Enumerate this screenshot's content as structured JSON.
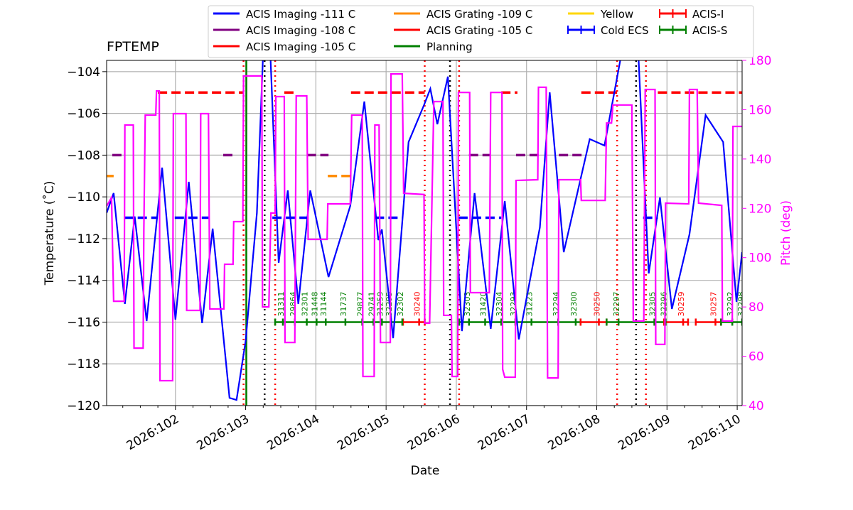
{
  "chart_data": {
    "type": "line",
    "title": "FPTEMP",
    "xlabel": "Date",
    "ylabel": "Temperature ($^\\circ$C)",
    "ylabel_display": "Temperature (˚C)",
    "y2label": "Pitch (deg)",
    "xlim": [
      101.02,
      110.07
    ],
    "ylim": [
      -120,
      -103.46
    ],
    "y2lim": [
      40,
      180
    ],
    "grid": true,
    "legend_position": "top",
    "x_ticks": [
      102,
      103,
      104,
      105,
      106,
      107,
      108,
      109,
      110
    ],
    "x_tick_labels": [
      "2026:102",
      "2026:103",
      "2026:104",
      "2026:105",
      "2026:106",
      "2026:107",
      "2026:108",
      "2026:109",
      "2026:110"
    ],
    "y_ticks": [
      -120,
      -118,
      -116,
      -114,
      -112,
      -110,
      -108,
      -106,
      -104
    ],
    "y_tick_labels": [
      "−120",
      "−118",
      "−116",
      "−114",
      "−112",
      "−110",
      "−108",
      "−106",
      "−104"
    ],
    "y2_ticks": [
      40,
      60,
      80,
      100,
      120,
      140,
      160,
      180
    ],
    "y2_tick_labels": [
      "40",
      "60",
      "80",
      "100",
      "120",
      "140",
      "160",
      "180"
    ],
    "legend": [
      {
        "label": "ACIS Imaging -111 C",
        "color": "#0000ff",
        "kind": "line"
      },
      {
        "label": "ACIS Imaging -108 C",
        "color": "#800080",
        "kind": "line"
      },
      {
        "label": "ACIS Imaging -105 C",
        "color": "#ff0000",
        "kind": "line"
      },
      {
        "label": "ACIS Grating -109 C",
        "color": "#ff8c00",
        "kind": "line"
      },
      {
        "label": "ACIS Grating -105 C",
        "color": "#ff0000",
        "kind": "line"
      },
      {
        "label": "Planning",
        "color": "#008000",
        "kind": "line"
      },
      {
        "label": "Yellow",
        "color": "#ffd700",
        "kind": "line"
      },
      {
        "label": "Cold ECS",
        "color": "#0000ff",
        "kind": "errorbar"
      },
      {
        "label": "ACIS-I",
        "color": "#ff0000",
        "kind": "errorbar"
      },
      {
        "label": "ACIS-S",
        "color": "#008000",
        "kind": "errorbar"
      }
    ],
    "series": [
      {
        "name": "FPTEMP",
        "axis": "left",
        "color": "#0000ff",
        "x": [
          101.02,
          101.12,
          101.28,
          101.42,
          101.59,
          101.81,
          102.0,
          102.19,
          102.38,
          102.53,
          102.77,
          102.87,
          103.0,
          103.16,
          103.25,
          103.35,
          103.47,
          103.6,
          103.75,
          103.92,
          104.18,
          104.49,
          104.69,
          104.89,
          104.94,
          105.1,
          105.32,
          105.54,
          105.63,
          105.73,
          105.88,
          106.08,
          106.26,
          106.49,
          106.69,
          106.89,
          107.19,
          107.33,
          107.53,
          107.9,
          108.11,
          108.36,
          108.59,
          108.74,
          108.9,
          109.07,
          109.32,
          109.55,
          109.8,
          109.99,
          110.07
        ],
        "y": [
          -110.77,
          -109.82,
          -115.13,
          -110.94,
          -115.95,
          -108.6,
          -115.88,
          -109.28,
          -116.05,
          -111.52,
          -119.63,
          -119.73,
          -116.9,
          -110.77,
          -103,
          -103,
          -113.16,
          -109.69,
          -115.13,
          -109.69,
          -113.84,
          -110.43,
          -105.43,
          -112.07,
          -111.56,
          -116.77,
          -107.37,
          -105.6,
          -104.82,
          -106.52,
          -104.24,
          -116.43,
          -109.82,
          -116.32,
          -110.2,
          -116.83,
          -111.46,
          -104.99,
          -112.65,
          -107.23,
          -107.54,
          -103,
          -103,
          -113.67,
          -110.03,
          -115.37,
          -111.8,
          -106.08,
          -107.37,
          -115.03,
          -112.65
        ]
      },
      {
        "name": "Pitch",
        "axis": "right",
        "color": "#ff00ff",
        "x": [
          101.02,
          101.09,
          101.12,
          101.27,
          101.28,
          101.4,
          101.41,
          101.54,
          101.55,
          101.57,
          101.72,
          101.73,
          101.77,
          101.78,
          101.96,
          101.97,
          102.15,
          102.16,
          102.35,
          102.36,
          102.47,
          102.49,
          102.69,
          102.7,
          102.82,
          102.83,
          102.96,
          102.97,
          103.23,
          103.24,
          103.33,
          103.36,
          103.42,
          103.43,
          103.55,
          103.56,
          103.7,
          103.72,
          103.87,
          103.89,
          104.16,
          104.17,
          104.49,
          104.51,
          104.66,
          104.67,
          104.83,
          104.84,
          104.9,
          104.92,
          105.06,
          105.07,
          105.23,
          105.25,
          105.54,
          105.55,
          105.62,
          105.68,
          105.81,
          105.82,
          105.93,
          105.94,
          106.02,
          106.03,
          106.19,
          106.2,
          106.47,
          106.49,
          106.65,
          106.66,
          106.69,
          106.84,
          106.85,
          107.16,
          107.17,
          107.28,
          107.3,
          107.45,
          107.46,
          107.77,
          107.78,
          108.12,
          108.14,
          108.21,
          108.23,
          108.5,
          108.52,
          108.67,
          108.69,
          108.83,
          108.84,
          108.97,
          108.98,
          109.31,
          109.32,
          109.43,
          109.45,
          109.78,
          109.79,
          109.93,
          109.94,
          110.07
        ],
        "y": [
          120.9,
          124.4,
          82.3,
          82.3,
          153.8,
          153.8,
          63.3,
          63.3,
          110.9,
          157.8,
          157.8,
          167.6,
          167.6,
          50.1,
          50.1,
          158.4,
          158.4,
          78.6,
          78.6,
          158.4,
          158.4,
          79.2,
          79.2,
          97.3,
          97.3,
          114.6,
          114.6,
          173.7,
          173.7,
          80,
          80,
          118.1,
          118.1,
          165.3,
          165.3,
          65.6,
          65.6,
          165.6,
          165.6,
          107.4,
          107.4,
          121.8,
          121.8,
          157.8,
          157.8,
          51.8,
          51.8,
          153.8,
          153.8,
          65.6,
          65.6,
          174.5,
          174.5,
          126.1,
          125.6,
          73.4,
          73.4,
          163.3,
          163.3,
          76.6,
          76.6,
          51.8,
          51.8,
          167,
          167,
          85.8,
          85.8,
          167,
          167,
          54.7,
          51.5,
          51.5,
          131.3,
          131.6,
          169.1,
          169.1,
          51.2,
          51.2,
          131.6,
          131.6,
          123.2,
          123.2,
          154.6,
          154.6,
          161.9,
          161.9,
          74.3,
          74.3,
          168.2,
          168.2,
          64.8,
          64.8,
          122.1,
          121.8,
          168.2,
          168.2,
          122.1,
          121.2,
          74.3,
          74.3,
          153.2,
          153.2
        ]
      }
    ],
    "limit_segments": [
      {
        "legend": "ACIS Imaging -111 C",
        "y": -111,
        "color": "#0000ff",
        "ranges": [
          [
            101.27,
            101.75
          ],
          [
            101.99,
            102.48
          ],
          [
            103.38,
            103.87
          ],
          [
            104.84,
            105.23
          ],
          [
            106.03,
            106.64
          ],
          [
            108.66,
            108.87
          ]
        ]
      },
      {
        "legend": "ACIS Imaging -108 C",
        "y": -108,
        "color": "#800080",
        "ranges": [
          [
            101.1,
            101.27
          ],
          [
            102.68,
            102.82
          ],
          [
            103.87,
            104.18
          ],
          [
            106.18,
            106.49
          ],
          [
            106.85,
            107.19
          ],
          [
            107.46,
            107.8
          ]
        ]
      },
      {
        "legend": "ACIS Imaging -105 C",
        "y": -105,
        "color": "#ff0000",
        "ranges": [
          [
            101.75,
            102.96
          ],
          [
            103.55,
            103.72
          ],
          [
            104.5,
            105.55
          ],
          [
            106.64,
            106.87
          ],
          [
            107.78,
            108.29
          ],
          [
            108.87,
            110.07
          ]
        ]
      },
      {
        "legend": "ACIS Grating -109 C",
        "y": -109,
        "color": "#ff8c00",
        "ranges": [
          [
            101.02,
            101.12
          ],
          [
            104.17,
            104.5
          ]
        ]
      }
    ],
    "planning_line": 103.01,
    "red_dotted_lines": [
      102.97,
      103.42,
      105.55,
      106.04,
      108.29,
      108.7
    ],
    "black_dotted_lines": [
      103.27,
      105.91,
      108.56
    ],
    "obsid_bar_y": -116,
    "obsid_segments": [
      {
        "instrument": "ACIS-S",
        "range": [
          103.42,
          105.24
        ]
      },
      {
        "instrument": "ACIS-I",
        "range": [
          105.24,
          105.55
        ]
      },
      {
        "instrument": "ACIS-S",
        "range": [
          106.04,
          107.77
        ]
      },
      {
        "instrument": "ACIS-I",
        "range": [
          107.77,
          108.14
        ]
      },
      {
        "instrument": "ACIS-S",
        "range": [
          108.14,
          108.96
        ]
      },
      {
        "instrument": "ACIS-I",
        "range": [
          108.96,
          109.3
        ]
      },
      {
        "instrument": "ACIS-I",
        "range": [
          109.41,
          109.77
        ]
      },
      {
        "instrument": "ACIS-S",
        "range": [
          109.77,
          110.07
        ]
      }
    ],
    "obsids": [
      {
        "id": "31311",
        "x": 103.5,
        "instrument": "ACIS-S"
      },
      {
        "id": "29864",
        "x": 103.67,
        "instrument": "ACIS-S"
      },
      {
        "id": "32301",
        "x": 103.84,
        "instrument": "ACIS-S"
      },
      {
        "id": "31448",
        "x": 103.98,
        "instrument": "ACIS-S"
      },
      {
        "id": "31144",
        "x": 104.11,
        "instrument": "ACIS-S"
      },
      {
        "id": "31737",
        "x": 104.39,
        "instrument": "ACIS-S"
      },
      {
        "id": "29877",
        "x": 104.63,
        "instrument": "ACIS-S"
      },
      {
        "id": "29741",
        "x": 104.79,
        "instrument": "ACIS-S"
      },
      {
        "id": "31259",
        "x": 104.91,
        "instrument": "ACIS-S"
      },
      {
        "id": "32295",
        "x": 105.04,
        "instrument": "ACIS-S"
      },
      {
        "id": "32302",
        "x": 105.2,
        "instrument": "ACIS-S"
      },
      {
        "id": "30240",
        "x": 105.44,
        "instrument": "ACIS-I"
      },
      {
        "id": "32303",
        "x": 106.15,
        "instrument": "ACIS-S"
      },
      {
        "id": "31420",
        "x": 106.38,
        "instrument": "ACIS-S"
      },
      {
        "id": "32304",
        "x": 106.61,
        "instrument": "ACIS-S"
      },
      {
        "id": "32293",
        "x": 106.81,
        "instrument": "ACIS-S"
      },
      {
        "id": "31223",
        "x": 107.04,
        "instrument": "ACIS-S"
      },
      {
        "id": "32294",
        "x": 107.42,
        "instrument": "ACIS-S"
      },
      {
        "id": "32300",
        "x": 107.67,
        "instrument": "ACIS-S"
      },
      {
        "id": "30250",
        "x": 108.0,
        "instrument": "ACIS-I"
      },
      {
        "id": "32297",
        "x": 108.28,
        "instrument": "ACIS-S"
      },
      {
        "id": "32305",
        "x": 108.79,
        "instrument": "ACIS-S"
      },
      {
        "id": "32296",
        "x": 108.95,
        "instrument": "ACIS-S"
      },
      {
        "id": "30259",
        "x": 109.2,
        "instrument": "ACIS-I"
      },
      {
        "id": "30257",
        "x": 109.66,
        "instrument": "ACIS-I"
      },
      {
        "id": "32292",
        "x": 109.9,
        "instrument": "ACIS-S"
      },
      {
        "id": "32298",
        "x": 110.05,
        "instrument": "ACIS-S"
      }
    ]
  }
}
